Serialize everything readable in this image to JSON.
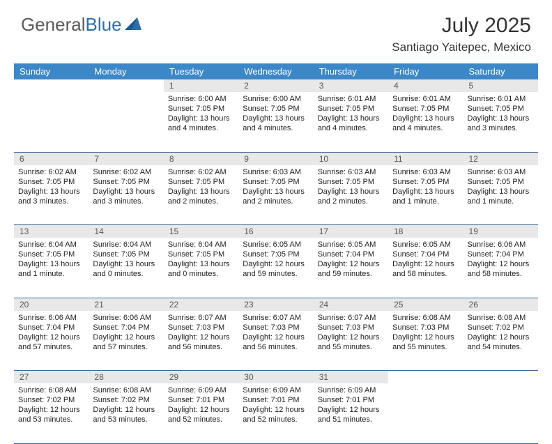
{
  "brand": {
    "part1": "General",
    "part2": "Blue"
  },
  "title": "July 2025",
  "location": "Santiago Yaitepec, Mexico",
  "colors": {
    "header_bg": "#3c87c7",
    "header_text": "#ffffff",
    "daynum_bg": "#e8e8e8",
    "daynum_text": "#555555",
    "border": "#3c6a9a",
    "body_text": "#222222",
    "title_text": "#333333"
  },
  "weekdays": [
    "Sunday",
    "Monday",
    "Tuesday",
    "Wednesday",
    "Thursday",
    "Friday",
    "Saturday"
  ],
  "weeks": [
    [
      null,
      null,
      {
        "n": "1",
        "sr": "6:00 AM",
        "ss": "7:05 PM",
        "dl": "13 hours and 4 minutes."
      },
      {
        "n": "2",
        "sr": "6:00 AM",
        "ss": "7:05 PM",
        "dl": "13 hours and 4 minutes."
      },
      {
        "n": "3",
        "sr": "6:01 AM",
        "ss": "7:05 PM",
        "dl": "13 hours and 4 minutes."
      },
      {
        "n": "4",
        "sr": "6:01 AM",
        "ss": "7:05 PM",
        "dl": "13 hours and 4 minutes."
      },
      {
        "n": "5",
        "sr": "6:01 AM",
        "ss": "7:05 PM",
        "dl": "13 hours and 3 minutes."
      }
    ],
    [
      {
        "n": "6",
        "sr": "6:02 AM",
        "ss": "7:05 PM",
        "dl": "13 hours and 3 minutes."
      },
      {
        "n": "7",
        "sr": "6:02 AM",
        "ss": "7:05 PM",
        "dl": "13 hours and 3 minutes."
      },
      {
        "n": "8",
        "sr": "6:02 AM",
        "ss": "7:05 PM",
        "dl": "13 hours and 2 minutes."
      },
      {
        "n": "9",
        "sr": "6:03 AM",
        "ss": "7:05 PM",
        "dl": "13 hours and 2 minutes."
      },
      {
        "n": "10",
        "sr": "6:03 AM",
        "ss": "7:05 PM",
        "dl": "13 hours and 2 minutes."
      },
      {
        "n": "11",
        "sr": "6:03 AM",
        "ss": "7:05 PM",
        "dl": "13 hours and 1 minute."
      },
      {
        "n": "12",
        "sr": "6:03 AM",
        "ss": "7:05 PM",
        "dl": "13 hours and 1 minute."
      }
    ],
    [
      {
        "n": "13",
        "sr": "6:04 AM",
        "ss": "7:05 PM",
        "dl": "13 hours and 1 minute."
      },
      {
        "n": "14",
        "sr": "6:04 AM",
        "ss": "7:05 PM",
        "dl": "13 hours and 0 minutes."
      },
      {
        "n": "15",
        "sr": "6:04 AM",
        "ss": "7:05 PM",
        "dl": "13 hours and 0 minutes."
      },
      {
        "n": "16",
        "sr": "6:05 AM",
        "ss": "7:05 PM",
        "dl": "12 hours and 59 minutes."
      },
      {
        "n": "17",
        "sr": "6:05 AM",
        "ss": "7:04 PM",
        "dl": "12 hours and 59 minutes."
      },
      {
        "n": "18",
        "sr": "6:05 AM",
        "ss": "7:04 PM",
        "dl": "12 hours and 58 minutes."
      },
      {
        "n": "19",
        "sr": "6:06 AM",
        "ss": "7:04 PM",
        "dl": "12 hours and 58 minutes."
      }
    ],
    [
      {
        "n": "20",
        "sr": "6:06 AM",
        "ss": "7:04 PM",
        "dl": "12 hours and 57 minutes."
      },
      {
        "n": "21",
        "sr": "6:06 AM",
        "ss": "7:04 PM",
        "dl": "12 hours and 57 minutes."
      },
      {
        "n": "22",
        "sr": "6:07 AM",
        "ss": "7:03 PM",
        "dl": "12 hours and 56 minutes."
      },
      {
        "n": "23",
        "sr": "6:07 AM",
        "ss": "7:03 PM",
        "dl": "12 hours and 56 minutes."
      },
      {
        "n": "24",
        "sr": "6:07 AM",
        "ss": "7:03 PM",
        "dl": "12 hours and 55 minutes."
      },
      {
        "n": "25",
        "sr": "6:08 AM",
        "ss": "7:03 PM",
        "dl": "12 hours and 55 minutes."
      },
      {
        "n": "26",
        "sr": "6:08 AM",
        "ss": "7:02 PM",
        "dl": "12 hours and 54 minutes."
      }
    ],
    [
      {
        "n": "27",
        "sr": "6:08 AM",
        "ss": "7:02 PM",
        "dl": "12 hours and 53 minutes."
      },
      {
        "n": "28",
        "sr": "6:08 AM",
        "ss": "7:02 PM",
        "dl": "12 hours and 53 minutes."
      },
      {
        "n": "29",
        "sr": "6:09 AM",
        "ss": "7:01 PM",
        "dl": "12 hours and 52 minutes."
      },
      {
        "n": "30",
        "sr": "6:09 AM",
        "ss": "7:01 PM",
        "dl": "12 hours and 52 minutes."
      },
      {
        "n": "31",
        "sr": "6:09 AM",
        "ss": "7:01 PM",
        "dl": "12 hours and 51 minutes."
      },
      null,
      null
    ]
  ],
  "labels": {
    "sunrise": "Sunrise:",
    "sunset": "Sunset:",
    "daylight": "Daylight:"
  }
}
